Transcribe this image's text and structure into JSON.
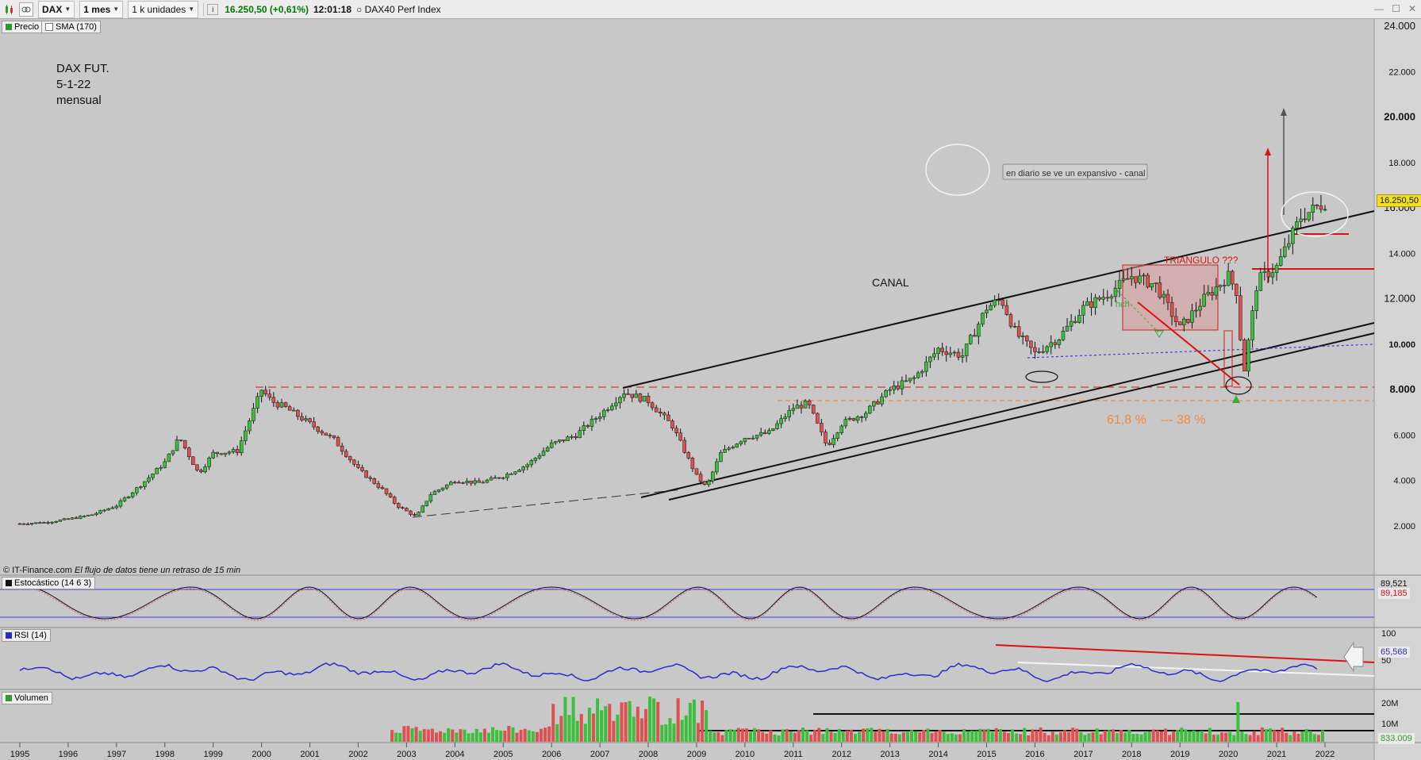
{
  "toolbar": {
    "symbol": "DAX",
    "period": "1 mes",
    "units": "1 k unidades",
    "price": "16.250,50 (+0,61%)",
    "time": "12:01:18",
    "instrument": "DAX40 Perf Index",
    "info_icon": "info-icon",
    "chart_icon": "candle-chart-icon",
    "link_icon": "link-icon"
  },
  "main_legend": {
    "price": "Precio",
    "sma": "SMA (170)"
  },
  "annotations": {
    "title_line1": "DAX FUT.",
    "title_line2": "5-1-22",
    "title_line3": "mensual",
    "canal": "CANAL",
    "triangulo": "TRIANGULO ???",
    "hch": "hch",
    "note": "en diario se ve un expansivo - canal",
    "fib": "61,8 %    --- 38 %"
  },
  "credit": {
    "source": "© IT-Finance.com",
    "delay": "El flujo de datos tiene un retraso de 15 min"
  },
  "current_price_tag": "16.250,50",
  "price_axis": [
    "24.000",
    "22.000",
    "20.000",
    "18.000",
    "16.000",
    "14.000",
    "12.000",
    "10.000",
    "8.000",
    "6.000",
    "4.000",
    "2.000"
  ],
  "stoch": {
    "label": "Estocástico (14 6 3)",
    "v1": "89,521",
    "v2": "89,185"
  },
  "rsi": {
    "label": "RSI (14)",
    "v": "65,568",
    "t100": "100",
    "t50": "50"
  },
  "volume": {
    "label": "Volumen",
    "t20": "20M",
    "t10": "10M",
    "v": "833.009"
  },
  "years": [
    "1995",
    "1996",
    "1997",
    "1998",
    "1999",
    "2000",
    "2001",
    "2002",
    "2003",
    "2004",
    "2005",
    "2006",
    "2007",
    "2008",
    "2009",
    "2010",
    "2011",
    "2012",
    "2013",
    "2014",
    "2015",
    "2016",
    "2017",
    "2018",
    "2019",
    "2020",
    "2021",
    "2022"
  ],
  "chart_data": {
    "type": "candlestick",
    "title": "",
    "instrument": "DAX",
    "interval": "monthly",
    "ylim": [
      0,
      24000
    ],
    "xlim": [
      1995,
      2022
    ],
    "series": [
      {
        "name": "Precio",
        "x": [
          1995.0,
          1995.5,
          1996.0,
          1996.5,
          1997.0,
          1997.5,
          1998.0,
          1998.3,
          1998.7,
          1999.0,
          1999.5,
          2000.0,
          2000.2,
          2000.5,
          2001.0,
          2001.5,
          2002.0,
          2002.5,
          2002.8,
          2003.2,
          2003.5,
          2004.0,
          2004.5,
          2005.0,
          2005.5,
          2006.0,
          2006.5,
          2007.0,
          2007.5,
          2008.0,
          2008.5,
          2009.0,
          2009.2,
          2009.5,
          2010.0,
          2010.5,
          2011.0,
          2011.3,
          2011.7,
          2012.0,
          2012.5,
          2013.0,
          2013.5,
          2014.0,
          2014.5,
          2015.0,
          2015.3,
          2015.6,
          2016.0,
          2016.5,
          2017.0,
          2017.5,
          2018.0,
          2018.5,
          2019.0,
          2019.5,
          2020.0,
          2020.2,
          2020.3,
          2020.6,
          2021.0,
          2021.5,
          2022.0
        ],
        "y": [
          2100,
          2150,
          2300,
          2500,
          2900,
          3800,
          4800,
          5900,
          4300,
          5200,
          5300,
          8000,
          7500,
          7200,
          6500,
          5800,
          4500,
          3600,
          2900,
          2400,
          3400,
          4000,
          3900,
          4200,
          4700,
          5600,
          6000,
          6900,
          7900,
          7500,
          6400,
          4200,
          3700,
          5200,
          5900,
          6100,
          7200,
          7400,
          5500,
          6500,
          7000,
          8000,
          8500,
          9800,
          9500,
          11600,
          12000,
          10500,
          9600,
          10300,
          11600,
          12200,
          13000,
          12600,
          10700,
          12000,
          13000,
          12200,
          8400,
          12800,
          13400,
          15600,
          16250
        ]
      }
    ],
    "annotation_levels": {
      "resistance_8000": 8000,
      "fib_support": 7500,
      "horizontal_14800": 14800,
      "horizontal_13200": 13200,
      "target_arrow_red": 18400,
      "target_arrow_grey": 20000
    }
  }
}
